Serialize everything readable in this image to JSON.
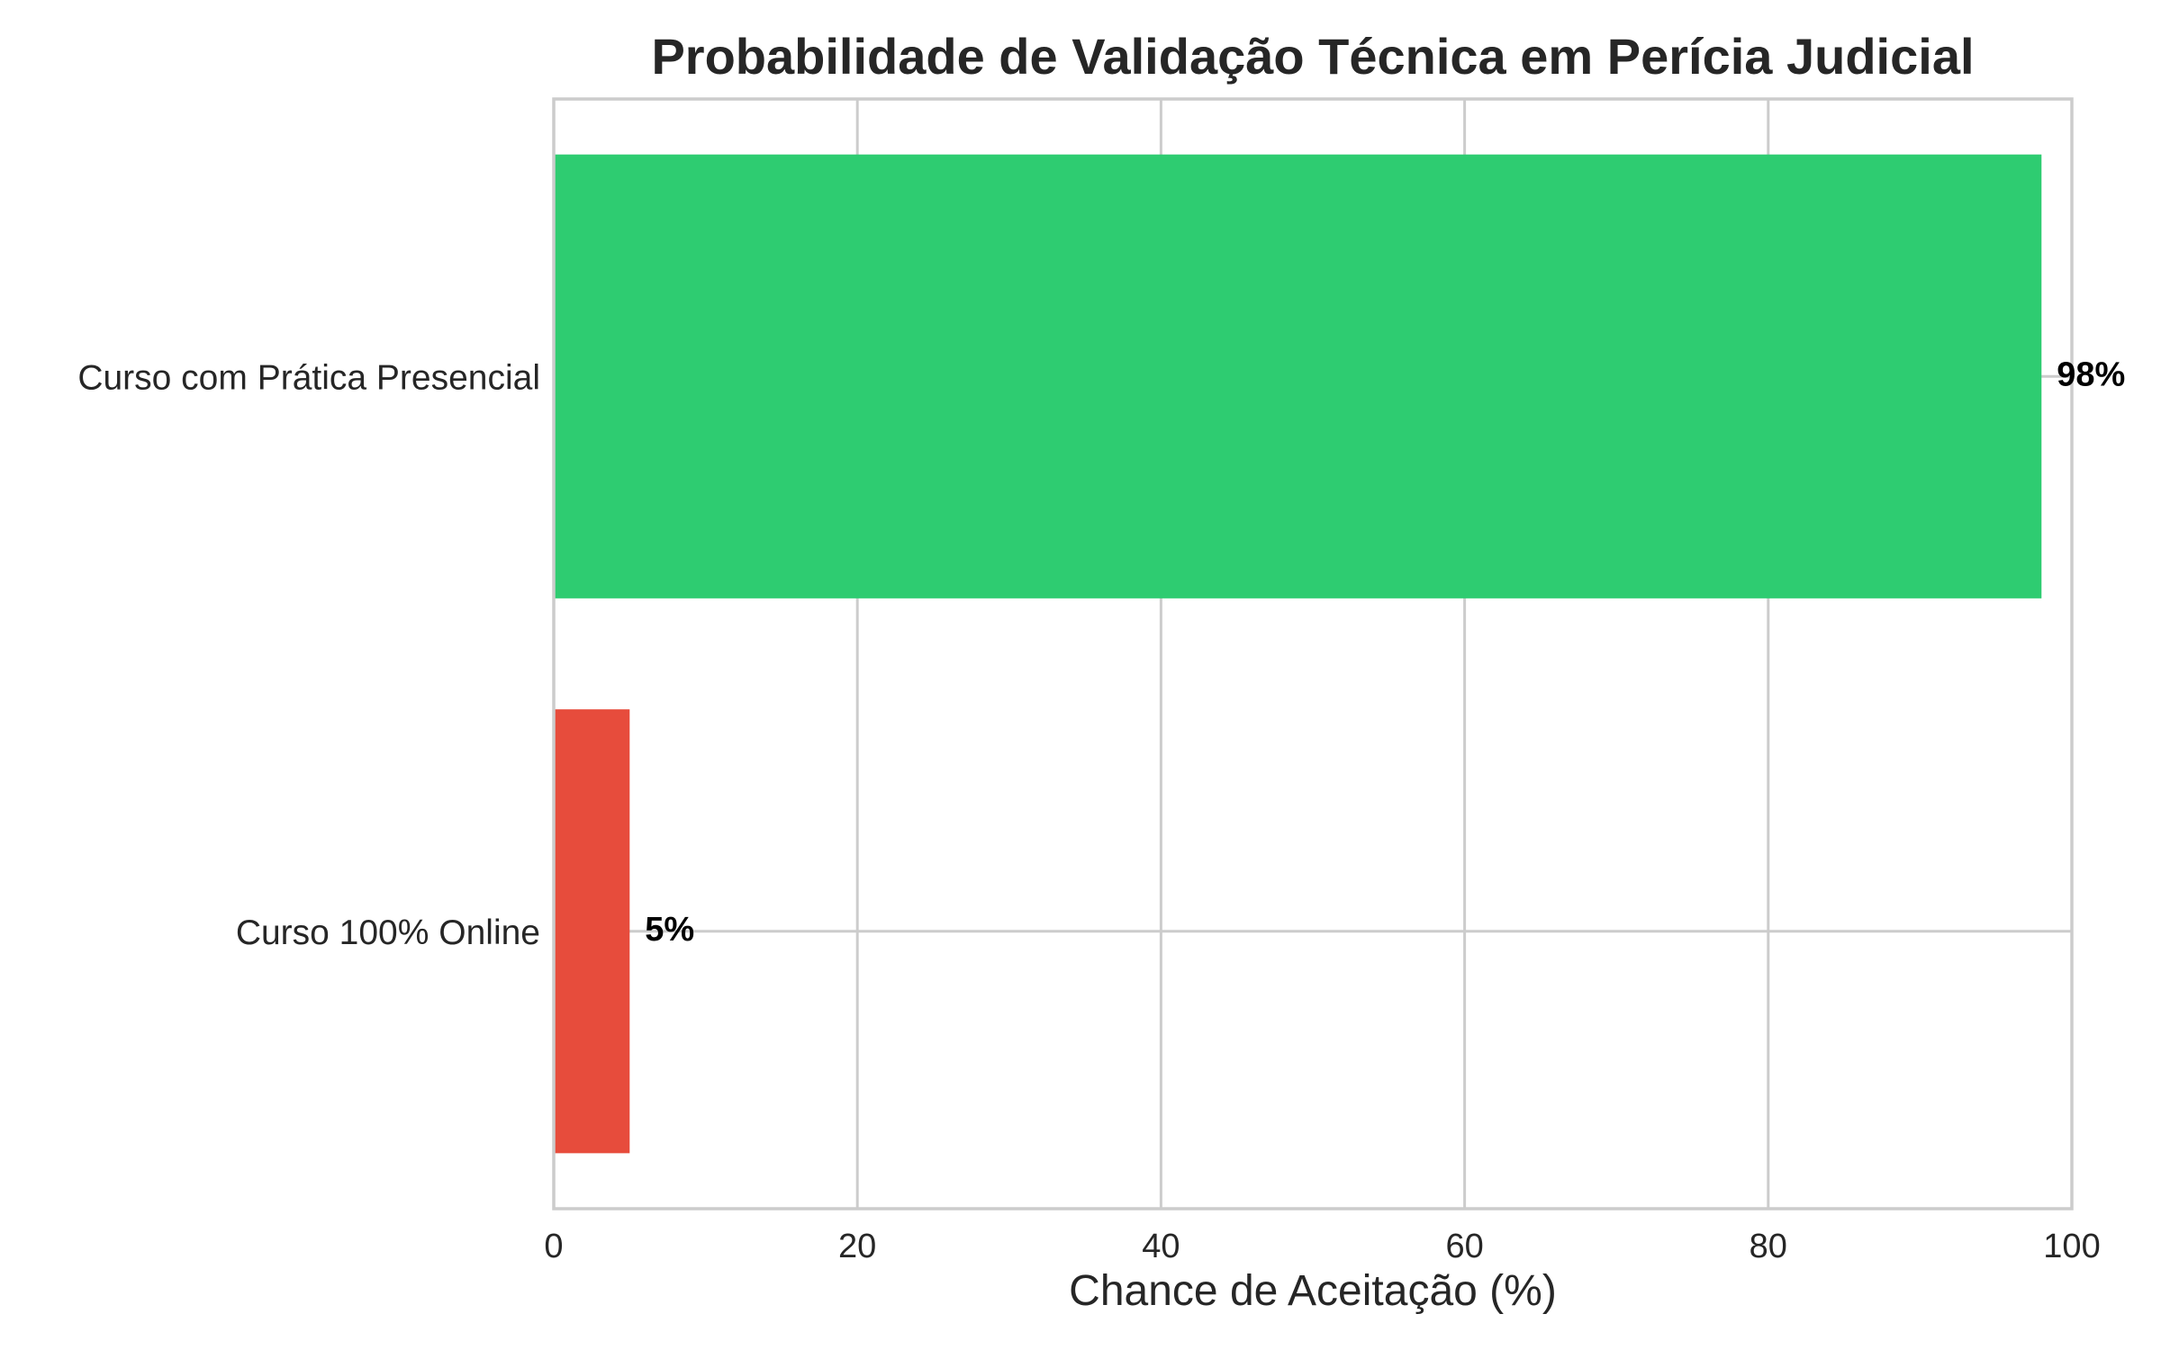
{
  "chart_data": {
    "type": "bar",
    "orientation": "horizontal",
    "title": "Probabilidade de Validação Técnica em Perícia Judicial",
    "xlabel": "Chance de Aceitação (%)",
    "ylabel": "",
    "xlim": [
      0,
      100
    ],
    "x_ticks": [
      "0",
      "20",
      "40",
      "60",
      "80",
      "100"
    ],
    "grid": true,
    "categories": [
      "Curso com Prática Presencial",
      "Curso 100% Online"
    ],
    "values": [
      98,
      5
    ],
    "data_labels": [
      "98%",
      "5%"
    ],
    "colors": [
      "#2ecc71",
      "#e74c3c"
    ]
  }
}
